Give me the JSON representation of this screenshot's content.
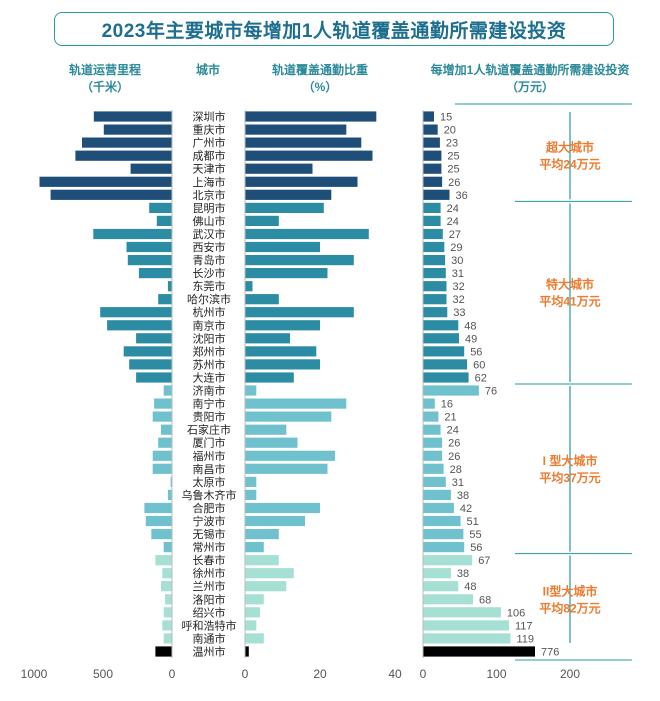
{
  "chart_data": {
    "type": "bar",
    "title": "2023年主要城市每增加1人轨道覆盖通勤所需建设投资",
    "column_headers": {
      "length": {
        "line1": "轨道运营里程",
        "line2": "（千米）"
      },
      "city": "城市",
      "coverage": {
        "line1": "轨道覆盖通勤比重",
        "line2": "（%）"
      },
      "investment": {
        "line1": "每增加1人轨道覆盖通勤所需建设投资",
        "line2": "（万元）"
      }
    },
    "axes": {
      "length": {
        "range": [
          1000,
          0
        ],
        "ticks": [
          "1000",
          "500",
          "0"
        ],
        "tick_values": [
          1000,
          500,
          0
        ]
      },
      "coverage": {
        "range": [
          0,
          40
        ],
        "ticks": [
          "0",
          "20",
          "40"
        ],
        "tick_values": [
          0,
          20,
          40
        ]
      },
      "investment": {
        "range": [
          0,
          200
        ],
        "ticks": [
          "0",
          "100",
          "200"
        ],
        "tick_values": [
          0,
          100,
          200
        ]
      }
    },
    "groups": [
      {
        "name": "超大城市",
        "avg": "平均24万元",
        "color": "#1f4e79",
        "count": 7
      },
      {
        "name": "特大城市",
        "avg": "平均41万元",
        "color": "#2b8ca3",
        "count": 14
      },
      {
        "name": "I 型大城市",
        "avg": "平均37万元",
        "color": "#6fc2cd",
        "count": 13
      },
      {
        "name": "II型大城市",
        "avg": "平均82万元",
        "color": "#a6e0d5",
        "count": 7
      }
    ],
    "categories": [
      "深圳市",
      "重庆市",
      "广州市",
      "成都市",
      "天津市",
      "上海市",
      "北京市",
      "昆明市",
      "佛山市",
      "武汉市",
      "西安市",
      "青岛市",
      "长沙市",
      "东莞市",
      "哈尔滨市",
      "杭州市",
      "南京市",
      "沈阳市",
      "郑州市",
      "苏州市",
      "大连市",
      "济南市",
      "南宁市",
      "贵阳市",
      "石家庄市",
      "厦门市",
      "福州市",
      "南昌市",
      "太原市",
      "乌鲁木齐市",
      "合肥市",
      "宁波市",
      "无锡市",
      "常州市",
      "长春市",
      "徐州市",
      "兰州市",
      "洛阳市",
      "绍兴市",
      "呼和浩特市",
      "南通市",
      "温州市"
    ],
    "series": [
      {
        "name": "轨道运营里程",
        "values": [
          567,
          494,
          652,
          700,
          300,
          960,
          880,
          165,
          110,
          570,
          330,
          320,
          240,
          30,
          100,
          520,
          470,
          260,
          350,
          310,
          260,
          60,
          130,
          140,
          80,
          100,
          140,
          140,
          10,
          30,
          200,
          190,
          150,
          60,
          120,
          70,
          80,
          50,
          60,
          70,
          60,
          120
        ]
      },
      {
        "name": "轨道覆盖通勤比重",
        "values": [
          35,
          27,
          31,
          34,
          18,
          30,
          23,
          21,
          9,
          33,
          20,
          29,
          22,
          2,
          9,
          29,
          20,
          12,
          19,
          20,
          13,
          3,
          27,
          23,
          11,
          14,
          24,
          22,
          3,
          3,
          20,
          16,
          9,
          5,
          9,
          13,
          11,
          5,
          4,
          3,
          5,
          1
        ]
      },
      {
        "name": "每增加1人轨道覆盖通勤所需建设投资",
        "values": [
          15,
          20,
          23,
          25,
          25,
          26,
          36,
          24,
          24,
          27,
          29,
          30,
          31,
          32,
          32,
          33,
          48,
          49,
          56,
          60,
          62,
          76,
          16,
          21,
          24,
          26,
          26,
          28,
          31,
          38,
          42,
          51,
          55,
          56,
          67,
          38,
          48,
          68,
          106,
          117,
          119,
          776
        ],
        "labels": [
          "15",
          "20",
          "23",
          "25",
          "25",
          "26",
          "36",
          "24",
          "24",
          "27",
          "29",
          "30",
          "31",
          "32",
          "32",
          "33",
          "48",
          "49",
          "56",
          "60",
          "62",
          "76",
          "16",
          "21",
          "24",
          "26",
          "26",
          "28",
          "31",
          "38",
          "42",
          "51",
          "55",
          "56",
          "67",
          "38",
          "48",
          "68",
          "106",
          "117",
          "119",
          "776"
        ]
      }
    ]
  }
}
